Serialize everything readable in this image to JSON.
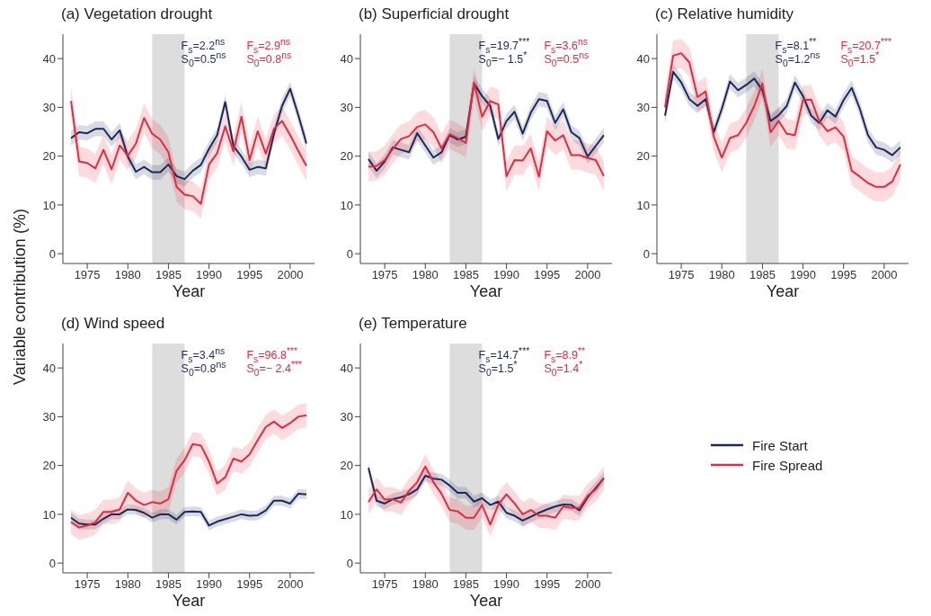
{
  "chart_data": [
    {
      "type": "line",
      "title": "(a) Vegetation drought",
      "xlabel": "Year",
      "ylabel": "Variable contribution (%)",
      "x": [
        1973,
        1974,
        1975,
        1976,
        1977,
        1978,
        1979,
        1980,
        1981,
        1982,
        1983,
        1984,
        1985,
        1986,
        1987,
        1988,
        1989,
        1990,
        1991,
        1992,
        1993,
        1994,
        1995,
        1996,
        1997,
        1998,
        1999,
        2000,
        2001,
        2002
      ],
      "xlim": [
        1972,
        2003
      ],
      "xticks": [
        1975,
        1980,
        1985,
        1990,
        1995,
        2000
      ],
      "ylim": [
        -2,
        45
      ],
      "yticks": [
        0,
        10,
        20,
        30,
        40
      ],
      "bands": [
        {
          "axis": "x",
          "from": 1983,
          "to": 1987,
          "color": "#dddddd"
        }
      ],
      "annotations": [
        "F$_{s}$=2.2$^{ns}$",
        "S$_{0}$=0.5$^{ns}$",
        "F$_{s}$=2.9$^{ns}$",
        "S$_{0}$=0.8$^{ns}$"
      ],
      "series": [
        {
          "color": "#1b2a5a",
          "values": [
            23.7,
            24.9,
            24.7,
            25.6,
            25.6,
            23.4,
            25.3,
            19.9,
            16.8,
            17.8,
            16.7,
            16.7,
            18.3,
            15.9,
            15.3,
            17.0,
            18.2,
            21.5,
            24.3,
            31.1,
            22.1,
            19.9,
            17.2,
            17.8,
            17.5,
            24.6,
            30.3,
            33.8,
            28.4,
            22.6
          ],
          "lower": [
            22.2,
            23.4,
            23.2,
            24.1,
            24.1,
            21.9,
            23.8,
            18.4,
            15.3,
            16.3,
            15.2,
            15.2,
            16.8,
            14.4,
            13.8,
            15.5,
            16.7,
            20.0,
            22.8,
            29.6,
            20.6,
            18.4,
            15.7,
            16.3,
            16.0,
            23.1,
            28.8,
            32.3,
            26.9,
            21.1
          ],
          "upper": [
            25.2,
            26.4,
            26.2,
            27.1,
            27.1,
            24.9,
            26.8,
            21.4,
            18.3,
            19.3,
            18.2,
            18.2,
            19.8,
            17.4,
            16.8,
            18.5,
            19.7,
            23.0,
            25.8,
            32.6,
            23.6,
            21.4,
            18.7,
            19.3,
            19.0,
            26.1,
            31.8,
            35.3,
            29.9,
            24.1
          ]
        },
        {
          "color": "#e8283c",
          "values": [
            31.3,
            18.9,
            18.6,
            17.5,
            21.3,
            17.3,
            22.2,
            20.1,
            22.6,
            27.8,
            24.6,
            23.4,
            20.8,
            13.7,
            12.1,
            11.8,
            10.2,
            18.3,
            20.6,
            26.1,
            21.0,
            28.1,
            19.2,
            25.1,
            20.5,
            25.6,
            27.2,
            24.3,
            21.1,
            18.0
          ],
          "lower": [
            28.3,
            15.9,
            15.6,
            14.5,
            18.3,
            14.3,
            19.2,
            17.1,
            19.6,
            24.8,
            21.6,
            20.4,
            17.8,
            10.7,
            9.1,
            8.8,
            7.2,
            15.3,
            17.6,
            23.1,
            18.0,
            25.1,
            16.2,
            22.1,
            17.5,
            22.6,
            24.2,
            21.3,
            18.1,
            15.0
          ],
          "upper": [
            34.3,
            21.9,
            21.6,
            20.5,
            24.3,
            20.3,
            25.2,
            23.1,
            25.6,
            30.8,
            27.6,
            26.4,
            23.8,
            16.7,
            15.1,
            14.8,
            13.2,
            21.3,
            23.6,
            29.1,
            24.0,
            31.1,
            22.2,
            28.1,
            23.5,
            28.6,
            30.2,
            27.3,
            24.1,
            21.0
          ]
        }
      ]
    },
    {
      "type": "line",
      "title": "(b) Superficial drought",
      "xlabel": "Year",
      "x": [
        1973,
        1974,
        1975,
        1976,
        1977,
        1978,
        1979,
        1980,
        1981,
        1982,
        1983,
        1984,
        1985,
        1986,
        1987,
        1988,
        1989,
        1990,
        1991,
        1992,
        1993,
        1994,
        1995,
        1996,
        1997,
        1998,
        1999,
        2000,
        2001,
        2002
      ],
      "xlim": [
        1972,
        2003
      ],
      "xticks": [
        1975,
        1980,
        1985,
        1990,
        1995,
        2000
      ],
      "ylim": [
        -2,
        45
      ],
      "yticks": [
        0,
        10,
        20,
        30,
        40
      ],
      "bands": [
        {
          "axis": "x",
          "from": 1983,
          "to": 1987,
          "color": "#dddddd"
        }
      ],
      "annotations": [
        "F$_{s}$=19.7$^{***}$",
        "S$_{0}$=− 1.5$^{*}$",
        "F$_{s}$=3.6$^{ns}$",
        "S$_{0}$=0.5$^{ns}$"
      ],
      "series": [
        {
          "color": "#1b2a5a",
          "values": [
            19.4,
            17.0,
            18.9,
            21.8,
            21.3,
            20.8,
            24.7,
            22.2,
            19.7,
            20.8,
            24.3,
            23.4,
            24.0,
            34.9,
            32.3,
            30.3,
            23.5,
            27.2,
            29.1,
            24.6,
            28.9,
            31.7,
            31.3,
            26.8,
            29.6,
            24.9,
            23.7,
            19.9,
            22.1,
            24.3
          ],
          "lower": [
            17.9,
            15.5,
            17.4,
            20.3,
            19.8,
            19.3,
            23.2,
            20.7,
            18.2,
            19.3,
            22.8,
            21.9,
            22.5,
            33.4,
            30.8,
            28.8,
            22.0,
            25.7,
            27.6,
            23.1,
            27.4,
            30.2,
            29.8,
            25.3,
            28.1,
            23.4,
            22.2,
            18.4,
            20.6,
            22.8
          ],
          "upper": [
            20.9,
            18.5,
            20.4,
            23.3,
            22.8,
            22.3,
            26.2,
            23.7,
            21.2,
            22.3,
            25.8,
            24.9,
            25.5,
            36.4,
            33.8,
            31.8,
            25.0,
            28.7,
            30.6,
            26.1,
            30.4,
            33.2,
            32.8,
            28.3,
            31.1,
            26.4,
            25.2,
            21.4,
            23.6,
            25.8
          ]
        },
        {
          "color": "#e8283c",
          "values": [
            17.8,
            18.0,
            19.2,
            21.5,
            23.5,
            24.1,
            26.0,
            26.5,
            24.9,
            21.6,
            24.5,
            23.7,
            22.7,
            35.1,
            28.1,
            31.3,
            30.6,
            15.9,
            19.2,
            19.1,
            21.6,
            15.8,
            25.1,
            23.2,
            24.3,
            20.2,
            20.2,
            19.6,
            19.2,
            15.9
          ],
          "lower": [
            14.8,
            15.0,
            16.2,
            18.5,
            20.5,
            21.1,
            23.0,
            23.5,
            21.9,
            18.6,
            21.5,
            20.7,
            19.7,
            32.1,
            25.1,
            28.3,
            27.6,
            12.9,
            16.2,
            16.1,
            18.6,
            12.8,
            22.1,
            20.2,
            21.3,
            17.2,
            17.2,
            16.6,
            16.2,
            12.9
          ],
          "upper": [
            20.8,
            21.0,
            22.2,
            24.5,
            26.5,
            27.1,
            29.0,
            29.5,
            27.9,
            24.6,
            27.5,
            26.7,
            25.7,
            38.1,
            31.1,
            34.3,
            33.6,
            18.9,
            22.2,
            22.1,
            24.6,
            18.8,
            28.1,
            26.2,
            27.3,
            23.2,
            23.2,
            22.6,
            22.2,
            18.9
          ]
        }
      ]
    },
    {
      "type": "line",
      "title": "(c) Relative humidity",
      "xlabel": "Year",
      "x": [
        1973,
        1974,
        1975,
        1976,
        1977,
        1978,
        1979,
        1980,
        1981,
        1982,
        1983,
        1984,
        1985,
        1986,
        1987,
        1988,
        1989,
        1990,
        1991,
        1992,
        1993,
        1994,
        1995,
        1996,
        1997,
        1998,
        1999,
        2000,
        2001,
        2002
      ],
      "xlim": [
        1972,
        2003
      ],
      "xticks": [
        1975,
        1980,
        1985,
        1990,
        1995,
        2000
      ],
      "ylim": [
        -2,
        45
      ],
      "yticks": [
        0,
        10,
        20,
        30,
        40
      ],
      "bands": [
        {
          "axis": "x",
          "from": 1983,
          "to": 1987,
          "color": "#dddddd"
        }
      ],
      "annotations": [
        "F$_{s}$=8.1$^{**}$",
        "S$_{0}$=1.2$^{ns}$",
        "F$_{s}$=20.7$^{***}$",
        "S$_{0}$=1.5$^{*}$"
      ],
      "series": [
        {
          "color": "#1b2a5a",
          "values": [
            28.3,
            37.3,
            35.1,
            31.7,
            30.3,
            31.7,
            24.9,
            29.7,
            35.3,
            33.5,
            34.6,
            35.9,
            33.5,
            27.2,
            28.4,
            30.3,
            35.1,
            32.3,
            28.3,
            26.8,
            29.4,
            28.1,
            31.5,
            34.0,
            29.7,
            24.3,
            21.8,
            21.3,
            20.2,
            21.8
          ],
          "lower": [
            26.8,
            35.8,
            33.6,
            30.2,
            28.8,
            30.2,
            23.4,
            28.2,
            33.8,
            32.0,
            33.1,
            34.4,
            32.0,
            25.7,
            26.9,
            28.8,
            33.6,
            30.8,
            26.8,
            25.3,
            27.9,
            26.6,
            30.0,
            32.5,
            28.2,
            22.8,
            20.3,
            19.8,
            18.7,
            20.3
          ],
          "upper": [
            29.8,
            38.8,
            36.6,
            33.2,
            31.8,
            33.2,
            26.4,
            31.2,
            36.8,
            35.0,
            36.1,
            37.4,
            35.0,
            28.7,
            29.9,
            31.8,
            36.6,
            33.8,
            29.8,
            28.3,
            30.9,
            29.6,
            33.0,
            35.5,
            31.2,
            25.8,
            23.3,
            22.8,
            21.7,
            23.3
          ]
        },
        {
          "color": "#e8283c",
          "values": [
            30.0,
            40.6,
            41.1,
            39.2,
            32.1,
            33.3,
            24.0,
            19.7,
            23.7,
            24.3,
            26.8,
            30.3,
            34.9,
            24.9,
            27.2,
            24.6,
            24.3,
            31.5,
            31.6,
            27.2,
            25.1,
            25.9,
            24.0,
            17.0,
            15.8,
            14.5,
            13.7,
            13.7,
            14.8,
            18.3
          ],
          "lower": [
            27.0,
            37.6,
            38.1,
            36.2,
            29.1,
            30.3,
            21.0,
            16.7,
            20.7,
            21.3,
            23.8,
            27.3,
            31.9,
            21.9,
            24.2,
            21.6,
            21.3,
            28.5,
            28.6,
            24.2,
            22.1,
            22.9,
            21.0,
            14.0,
            12.8,
            11.5,
            10.7,
            10.7,
            11.8,
            15.3
          ],
          "upper": [
            33.0,
            43.6,
            44.1,
            42.2,
            35.1,
            36.3,
            27.0,
            22.7,
            26.7,
            27.3,
            29.8,
            33.3,
            37.9,
            27.9,
            30.2,
            27.6,
            27.3,
            34.5,
            34.6,
            30.2,
            28.1,
            28.9,
            27.0,
            20.0,
            18.8,
            17.5,
            16.7,
            16.7,
            17.8,
            21.3
          ]
        }
      ]
    },
    {
      "type": "line",
      "title": "(d) Wind speed",
      "xlabel": "Year",
      "x": [
        1973,
        1974,
        1975,
        1976,
        1977,
        1978,
        1979,
        1980,
        1981,
        1982,
        1983,
        1984,
        1985,
        1986,
        1987,
        1988,
        1989,
        1990,
        1991,
        1992,
        1993,
        1994,
        1995,
        1996,
        1997,
        1998,
        1999,
        2000,
        2001,
        2002
      ],
      "xlim": [
        1972,
        2003
      ],
      "xticks": [
        1975,
        1980,
        1985,
        1990,
        1995,
        2000
      ],
      "ylim": [
        -2,
        45
      ],
      "yticks": [
        0,
        10,
        20,
        30,
        40
      ],
      "bands": [
        {
          "axis": "x",
          "from": 1983,
          "to": 1987,
          "color": "#dddddd"
        }
      ],
      "annotations": [
        "F$_{s}$=3.4$^{ns}$",
        "S$_{0}$=0.8$^{ns}$",
        "F$_{s}$=96.8$^{***}$",
        "S$_{0}$=− 2.4$^{***}$"
      ],
      "series": [
        {
          "color": "#1b2a5a",
          "values": [
            9.3,
            8.1,
            7.9,
            7.9,
            9.1,
            10.0,
            10.0,
            11.0,
            10.9,
            10.3,
            9.3,
            10.0,
            10.0,
            8.9,
            10.5,
            10.6,
            10.5,
            7.7,
            8.5,
            9.0,
            9.5,
            10.0,
            9.7,
            9.8,
            10.8,
            12.8,
            12.8,
            12.2,
            14.2,
            14.1
          ],
          "lower": [
            8.3,
            7.1,
            6.9,
            6.9,
            8.1,
            9.0,
            9.0,
            10.0,
            9.9,
            9.3,
            8.3,
            9.0,
            9.0,
            7.9,
            9.5,
            9.6,
            9.5,
            6.7,
            7.5,
            8.0,
            8.5,
            9.0,
            8.7,
            8.8,
            9.8,
            11.8,
            11.8,
            11.2,
            13.2,
            13.1
          ],
          "upper": [
            10.3,
            9.1,
            8.9,
            8.9,
            10.1,
            11.0,
            11.0,
            12.0,
            11.9,
            11.3,
            10.3,
            11.0,
            11.0,
            9.9,
            11.5,
            11.6,
            11.5,
            8.7,
            9.5,
            10.0,
            10.5,
            11.0,
            10.7,
            10.8,
            11.8,
            13.8,
            13.8,
            13.2,
            15.2,
            15.1
          ]
        },
        {
          "color": "#e8283c",
          "values": [
            8.4,
            7.3,
            7.7,
            8.4,
            10.5,
            10.5,
            11.0,
            14.4,
            12.8,
            11.9,
            12.5,
            12.2,
            13.1,
            18.9,
            21.1,
            24.4,
            24.1,
            20.8,
            16.3,
            17.6,
            21.4,
            20.8,
            22.3,
            25.2,
            27.9,
            29.0,
            27.7,
            28.7,
            30.0,
            30.3
          ],
          "lower": [
            5.9,
            4.8,
            5.2,
            5.9,
            8.0,
            8.0,
            8.5,
            11.9,
            10.3,
            9.4,
            10.0,
            9.7,
            10.6,
            16.4,
            18.6,
            21.9,
            21.6,
            18.3,
            13.8,
            15.1,
            18.9,
            18.3,
            19.8,
            22.7,
            25.4,
            26.5,
            25.2,
            26.2,
            27.5,
            27.8
          ],
          "upper": [
            10.9,
            9.8,
            10.2,
            10.9,
            13.0,
            13.0,
            13.5,
            16.9,
            15.3,
            14.4,
            15.0,
            14.7,
            15.6,
            21.4,
            23.6,
            26.9,
            26.6,
            23.3,
            18.8,
            20.1,
            23.9,
            23.3,
            24.8,
            27.7,
            30.4,
            31.5,
            30.2,
            31.2,
            32.5,
            32.8
          ]
        }
      ]
    },
    {
      "type": "line",
      "title": "(e) Temperature",
      "xlabel": "Year",
      "legend": "right",
      "x": [
        1973,
        1974,
        1975,
        1976,
        1977,
        1978,
        1979,
        1980,
        1981,
        1982,
        1983,
        1984,
        1985,
        1986,
        1987,
        1988,
        1989,
        1990,
        1991,
        1992,
        1993,
        1994,
        1995,
        1996,
        1997,
        1998,
        1999,
        2000,
        2001,
        2002
      ],
      "xlim": [
        1972,
        2003
      ],
      "xticks": [
        1975,
        1980,
        1985,
        1990,
        1995,
        2000
      ],
      "ylim": [
        -2,
        45
      ],
      "yticks": [
        0,
        10,
        20,
        30,
        40
      ],
      "bands": [
        {
          "axis": "x",
          "from": 1983,
          "to": 1987,
          "color": "#dddddd"
        }
      ],
      "annotations": [
        "F$_{s}$=14.7$^{***}$",
        "S$_{0}$=1.5$^{*}$",
        "F$_{s}$=8.9$^{**}$",
        "S$_{0}$=1.4$^{*}$"
      ],
      "series": [
        {
          "name": "Fire Start",
          "color": "#1b2a5a",
          "values": [
            19.5,
            12.8,
            12.2,
            13.1,
            13.5,
            14.1,
            15.1,
            17.9,
            17.3,
            17.1,
            15.9,
            14.4,
            14.4,
            12.6,
            13.3,
            11.9,
            12.6,
            10.3,
            9.7,
            8.7,
            9.5,
            10.3,
            11.0,
            11.6,
            12.0,
            11.9,
            10.8,
            13.5,
            15.4,
            17.4
          ],
          "lower": [
            18.3,
            11.6,
            11.0,
            11.9,
            12.3,
            12.9,
            13.9,
            16.7,
            16.1,
            15.9,
            14.7,
            13.2,
            13.2,
            11.4,
            12.1,
            10.7,
            11.4,
            9.1,
            8.5,
            7.5,
            8.3,
            9.1,
            9.8,
            10.4,
            10.8,
            10.7,
            9.6,
            12.3,
            14.2,
            16.2
          ],
          "upper": [
            20.7,
            14.0,
            13.4,
            14.3,
            14.7,
            15.3,
            16.3,
            19.1,
            18.5,
            18.3,
            17.1,
            15.6,
            15.6,
            13.8,
            14.5,
            13.1,
            13.8,
            11.5,
            10.9,
            9.9,
            10.7,
            11.5,
            12.2,
            12.8,
            13.2,
            13.1,
            12.0,
            14.7,
            16.6,
            18.6
          ]
        },
        {
          "name": "Fire Spread",
          "color": "#e8283c",
          "values": [
            12.5,
            15.1,
            13.0,
            13.1,
            12.4,
            14.8,
            16.6,
            19.8,
            16.6,
            14.2,
            10.9,
            10.6,
            9.3,
            9.3,
            11.9,
            7.9,
            12.0,
            14.1,
            12.2,
            10.0,
            10.9,
            9.7,
            9.7,
            9.3,
            11.6,
            11.3,
            11.3,
            13.8,
            15.1,
            17.4
          ],
          "lower": [
            10.0,
            12.6,
            10.5,
            10.6,
            9.9,
            12.3,
            14.1,
            17.3,
            14.1,
            11.7,
            8.4,
            8.1,
            6.8,
            6.8,
            9.4,
            5.4,
            9.5,
            11.6,
            9.7,
            7.5,
            8.4,
            7.2,
            7.2,
            6.8,
            9.1,
            8.8,
            8.8,
            11.3,
            12.6,
            14.9
          ],
          "upper": [
            15.0,
            17.6,
            15.5,
            15.6,
            14.9,
            17.3,
            19.1,
            22.3,
            19.1,
            16.7,
            13.4,
            13.1,
            11.8,
            11.8,
            14.4,
            10.4,
            14.5,
            16.6,
            14.7,
            12.5,
            13.4,
            12.2,
            12.2,
            11.8,
            14.1,
            13.8,
            13.8,
            16.3,
            17.6,
            19.9
          ]
        }
      ]
    }
  ]
}
